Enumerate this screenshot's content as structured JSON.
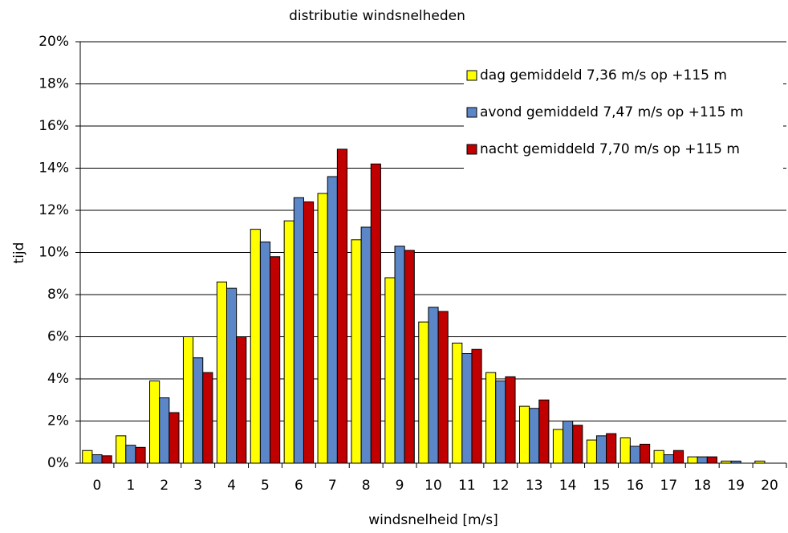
{
  "chart_data": {
    "type": "bar",
    "title": "distributie windsnelheden",
    "x_label": "windsnelheid [m/s]",
    "y_label": "tijd",
    "categories": [
      "0",
      "1",
      "2",
      "3",
      "4",
      "5",
      "6",
      "7",
      "8",
      "9",
      "10",
      "11",
      "12",
      "13",
      "14",
      "15",
      "16",
      "17",
      "18",
      "19",
      "20"
    ],
    "series": [
      {
        "name": "dag gemiddeld 7,36 m/s op +115  m",
        "color": "#ffff00",
        "values": [
          0.6,
          1.3,
          3.9,
          6.0,
          8.6,
          11.1,
          11.5,
          12.8,
          10.6,
          8.8,
          6.7,
          5.7,
          4.3,
          2.7,
          1.6,
          1.1,
          1.2,
          0.6,
          0.3,
          0.1,
          0.1
        ]
      },
      {
        "name": "avond gemiddeld 7,47 m/s op +115  m",
        "color": "#5b86c8",
        "values": [
          0.4,
          0.85,
          3.1,
          5.0,
          8.3,
          10.5,
          12.6,
          13.6,
          11.2,
          10.3,
          7.4,
          5.2,
          3.9,
          2.6,
          2.0,
          1.3,
          0.8,
          0.4,
          0.3,
          0.1,
          0
        ]
      },
      {
        "name": "nacht gemiddeld 7,70 m/s op +115  m",
        "color": "#c00000",
        "values": [
          0.35,
          0.75,
          2.4,
          4.3,
          6.0,
          9.8,
          12.4,
          14.9,
          14.2,
          10.1,
          7.2,
          5.4,
          4.1,
          3.0,
          1.8,
          1.4,
          0.9,
          0.6,
          0.3,
          0,
          0
        ]
      }
    ],
    "ylim": [
      0,
      20
    ],
    "yticks": [
      {
        "value": 0,
        "label": "0%"
      },
      {
        "value": 2,
        "label": "2%"
      },
      {
        "value": 4,
        "label": "4%"
      },
      {
        "value": 6,
        "label": "6%"
      },
      {
        "value": 8,
        "label": "8%"
      },
      {
        "value": 10,
        "label": "10%"
      },
      {
        "value": 12,
        "label": "12%"
      },
      {
        "value": 14,
        "label": "14%"
      },
      {
        "value": 16,
        "label": "16%"
      },
      {
        "value": 18,
        "label": "18%"
      },
      {
        "value": 20,
        "label": "20%"
      }
    ],
    "grid": true,
    "legend": "upper right"
  }
}
